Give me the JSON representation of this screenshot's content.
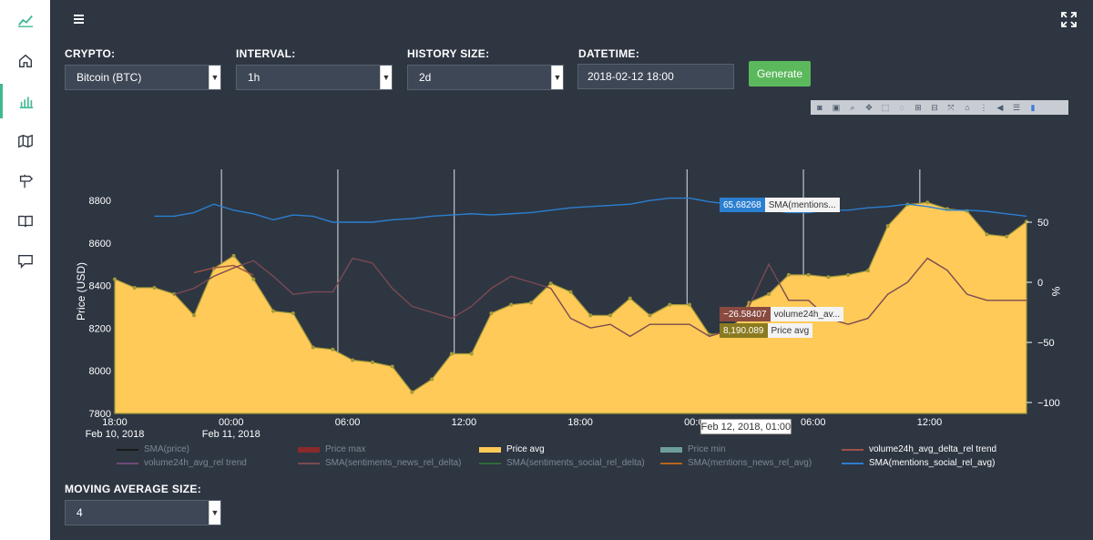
{
  "sidebar": {
    "items": [
      {
        "icon": "trending-up-icon"
      },
      {
        "icon": "home-icon"
      },
      {
        "icon": "bar-chart-icon"
      },
      {
        "icon": "map-icon"
      },
      {
        "icon": "signpost-icon"
      },
      {
        "icon": "book-icon"
      },
      {
        "icon": "chat-icon"
      }
    ],
    "active_index": 2,
    "accent": "#3fb894"
  },
  "header": {
    "menu_icon": "hamburger-icon",
    "expand_icon": "fullscreen-icon"
  },
  "controls": {
    "crypto_label": "CRYPTO:",
    "crypto_value": "Bitcoin (BTC)",
    "interval_label": "INTERVAL:",
    "interval_value": "1h",
    "history_label": "HISTORY SIZE:",
    "history_value": "2d",
    "datetime_label": "DATETIME:",
    "datetime_value": "2018-02-12 18:00",
    "generate_label": "Generate",
    "ma_label": "MOVING AVERAGE SIZE:",
    "ma_value": "4"
  },
  "modebar_icons": [
    "camera-icon",
    "save-icon",
    "zoom-icon",
    "pan-icon",
    "box-select-icon",
    "lasso-icon",
    "zoom-in-icon",
    "zoom-out-icon",
    "autoscale-icon",
    "reset-axes-icon",
    "spike-lines-icon",
    "hover-closest-icon",
    "hover-compare-icon",
    "plotly-logo-icon"
  ],
  "chart_data": {
    "type": "area",
    "ylabel_left": "Price (USD)",
    "ylabel_right": "%",
    "y_left_ticks": [
      "7800",
      "8000",
      "8200",
      "8400",
      "8600",
      "8800"
    ],
    "y_left_range": [
      7800,
      8800
    ],
    "y_right_ticks": [
      "50",
      "0",
      "−50",
      "−100"
    ],
    "y_right_range": [
      -100,
      50
    ],
    "x_ticks": [
      {
        "label": "18:00",
        "sub": "Feb 10, 2018"
      },
      {
        "label": "00:00",
        "sub": "Feb 11, 2018"
      },
      {
        "label": "06:00",
        "sub": ""
      },
      {
        "label": "12:00",
        "sub": ""
      },
      {
        "label": "18:00",
        "sub": ""
      },
      {
        "label": "00:00",
        "sub": ""
      },
      {
        "label": "06:00",
        "sub": ""
      },
      {
        "label": "12:00",
        "sub": ""
      }
    ],
    "x_hours_range": [
      0,
      47
    ],
    "series": [
      {
        "name": "Price avg",
        "color": "#ffca58",
        "axis": "left",
        "values": [
          8430,
          8390,
          8390,
          8360,
          8260,
          8480,
          8540,
          8430,
          8280,
          8270,
          8110,
          8100,
          8050,
          8040,
          8020,
          7900,
          7960,
          8080,
          8080,
          8270,
          8310,
          8320,
          8410,
          8370,
          8260,
          8260,
          8340,
          8260,
          8310,
          8310,
          8170,
          8180,
          8320,
          8360,
          8450,
          8450,
          8440,
          8450,
          8470,
          8680,
          8780,
          8790,
          8760,
          8750,
          8640,
          8630,
          8700
        ]
      },
      {
        "name": "volume24h_avg_delta_rel trend",
        "color": "#a0504a",
        "axis": "right",
        "values": [
          null,
          null,
          null,
          null,
          8,
          12,
          14,
          6,
          null,
          null,
          null,
          null,
          null,
          null,
          null,
          null,
          null,
          null,
          null,
          null,
          null,
          null,
          null,
          null,
          null,
          null,
          null,
          null,
          null,
          null,
          null,
          null,
          null,
          null,
          null,
          null,
          null,
          null,
          null,
          null,
          null,
          null,
          null,
          null,
          null,
          null,
          null
        ]
      },
      {
        "name": "SMA(sentiments_news_rel_delta)",
        "color": "#7a4a52",
        "axis": "right",
        "values": [
          null,
          null,
          null,
          -10,
          -5,
          5,
          12,
          18,
          5,
          -10,
          -8,
          -8,
          20,
          16,
          -5,
          -20,
          -25,
          -30,
          -20,
          -5,
          5,
          0,
          -5,
          -30,
          -38,
          -35,
          -45,
          -35,
          -35,
          -35,
          -45,
          -40,
          -20,
          15,
          -15,
          -15,
          -30,
          -35,
          -30,
          -10,
          0,
          20,
          10,
          -10,
          -15,
          -15,
          -15
        ]
      },
      {
        "name": "SMA(mentions_social_rel_avg)",
        "color": "#2b7fd0",
        "axis": "right",
        "values": [
          null,
          null,
          55,
          55,
          58,
          65,
          60,
          57,
          52,
          56,
          55,
          50,
          50,
          50,
          52,
          53,
          55,
          56,
          57,
          56,
          57,
          58,
          60,
          62,
          63,
          64,
          65,
          68,
          70,
          70,
          67,
          65,
          62,
          60,
          58,
          58,
          60,
          60,
          62,
          63,
          65,
          63,
          60,
          60,
          59,
          57,
          55
        ]
      },
      {
        "name": "volume24h_avg_rel trend",
        "color": "#6e4a78",
        "axis": "right",
        "values": []
      },
      {
        "name": "SMA(price)",
        "color": "#1a1a1a",
        "axis": "left",
        "values": []
      },
      {
        "name": "Price max",
        "color": "#8b2a2a",
        "axis": "left",
        "values": []
      },
      {
        "name": "Price min",
        "color": "#6e9e9a",
        "axis": "left",
        "values": []
      },
      {
        "name": "SMA(sentiments_social_rel_delta)",
        "color": "#2e6b3a",
        "axis": "right",
        "values": []
      },
      {
        "name": "SMA(mentions_news_rel_avg)",
        "color": "#b5651d",
        "axis": "right",
        "values": []
      }
    ],
    "hover": {
      "x_label": "Feb 12, 2018, 01:00",
      "tags": [
        {
          "value": "65.68268",
          "name": "SMA(mentions...",
          "color": "#2b7fd0"
        },
        {
          "value": "−26.58407",
          "name": "volume24h_av...",
          "color": "#8a4a40"
        },
        {
          "value": "8,190.089",
          "name": "Price avg",
          "color": "#8a7a20"
        }
      ]
    },
    "grid": "vertical spikes",
    "legend_position": "bottom"
  }
}
